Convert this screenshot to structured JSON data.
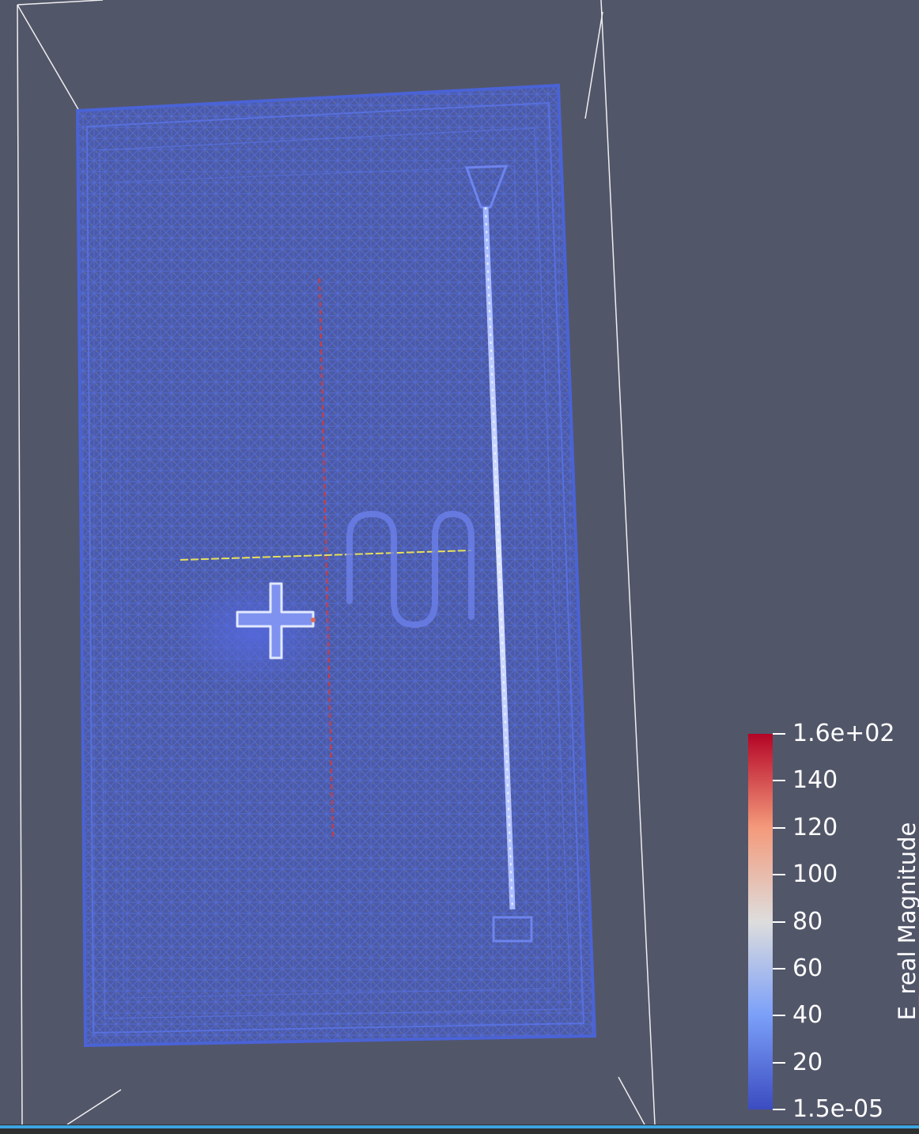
{
  "viewport": {
    "background_color": "#525669",
    "outline_color": "#ffffff",
    "mesh_color": "#4a63d6",
    "feature_color": "#cfdcff",
    "probe_line_color": "#d33a3a",
    "probe_line2_color": "#e8e05a"
  },
  "colorbar": {
    "title": "E_real Magnitude",
    "colormap": "Cool to Warm",
    "color_min": "#3b4cc0",
    "color_mid": "#dddddd",
    "color_max": "#b40426",
    "labels": [
      {
        "text": "1.6e+02",
        "value": 160
      },
      {
        "text": "140",
        "value": 140
      },
      {
        "text": "120",
        "value": 120
      },
      {
        "text": "100",
        "value": 100
      },
      {
        "text": "80",
        "value": 80
      },
      {
        "text": "60",
        "value": 60
      },
      {
        "text": "40",
        "value": 40
      },
      {
        "text": "20",
        "value": 20
      },
      {
        "text": "1.5e-05",
        "value": 1.5e-05
      }
    ],
    "range": [
      1.5e-05,
      160
    ]
  },
  "status": {
    "accent_color": "#3da4e2"
  }
}
